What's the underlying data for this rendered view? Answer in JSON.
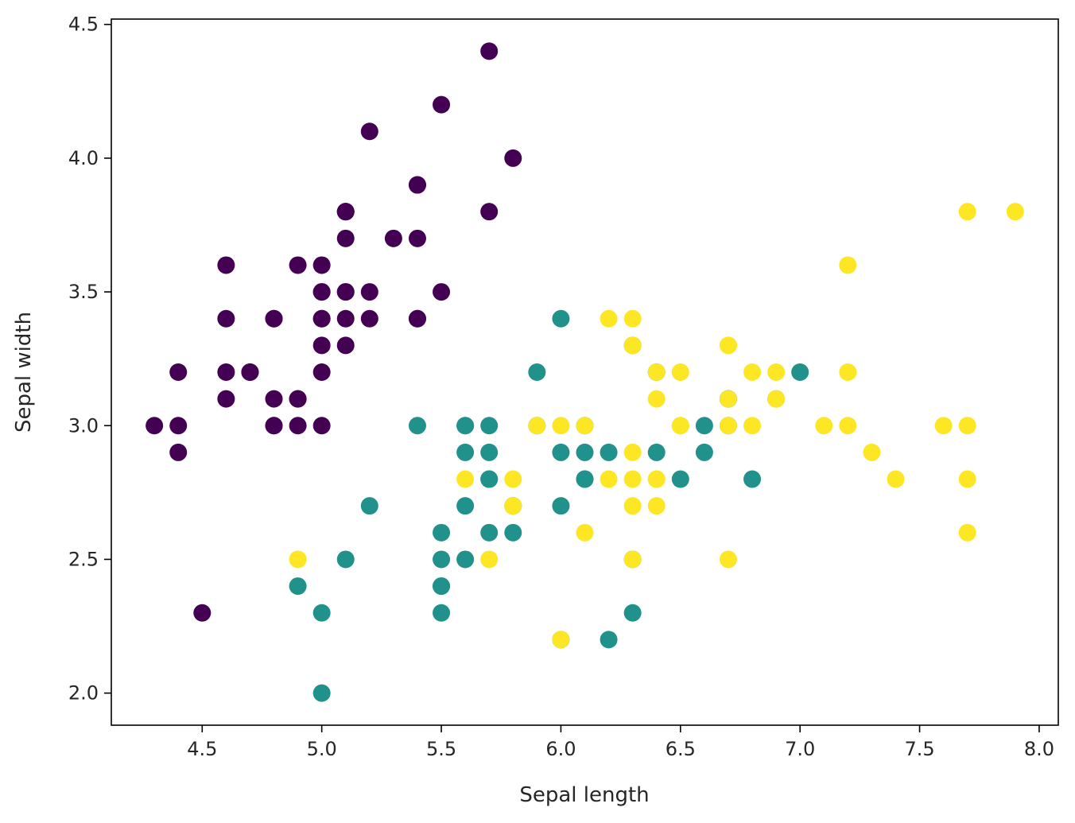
{
  "chart_data": {
    "type": "scatter",
    "xlabel": "Sepal length",
    "ylabel": "Sepal width",
    "xlim": [
      4.12,
      8.08
    ],
    "ylim": [
      1.88,
      4.52
    ],
    "xticks": [
      "4.5",
      "5.0",
      "5.5",
      "6.0",
      "6.5",
      "7.0",
      "7.5",
      "8.0"
    ],
    "yticks": [
      "2.0",
      "2.5",
      "3.0",
      "3.5",
      "4.0",
      "4.5"
    ],
    "grid": false,
    "legend": "none",
    "series": [
      {
        "color": "#440154",
        "points": [
          [
            5.1,
            3.5
          ],
          [
            4.9,
            3.0
          ],
          [
            4.7,
            3.2
          ],
          [
            4.6,
            3.1
          ],
          [
            5.0,
            3.6
          ],
          [
            5.4,
            3.9
          ],
          [
            4.6,
            3.4
          ],
          [
            5.0,
            3.4
          ],
          [
            4.4,
            2.9
          ],
          [
            4.9,
            3.1
          ],
          [
            5.4,
            3.7
          ],
          [
            4.8,
            3.4
          ],
          [
            4.8,
            3.0
          ],
          [
            4.3,
            3.0
          ],
          [
            5.8,
            4.0
          ],
          [
            5.7,
            4.4
          ],
          [
            5.4,
            3.9
          ],
          [
            5.1,
            3.5
          ],
          [
            5.7,
            3.8
          ],
          [
            5.1,
            3.8
          ],
          [
            5.4,
            3.4
          ],
          [
            5.1,
            3.7
          ],
          [
            4.6,
            3.6
          ],
          [
            5.1,
            3.3
          ],
          [
            4.8,
            3.4
          ],
          [
            5.0,
            3.0
          ],
          [
            5.0,
            3.4
          ],
          [
            5.2,
            3.5
          ],
          [
            5.2,
            3.4
          ],
          [
            4.7,
            3.2
          ],
          [
            4.8,
            3.1
          ],
          [
            5.4,
            3.4
          ],
          [
            5.2,
            4.1
          ],
          [
            5.5,
            4.2
          ],
          [
            4.9,
            3.1
          ],
          [
            5.0,
            3.2
          ],
          [
            5.5,
            3.5
          ],
          [
            4.9,
            3.6
          ],
          [
            4.4,
            3.0
          ],
          [
            5.1,
            3.4
          ],
          [
            5.0,
            3.5
          ],
          [
            4.5,
            2.3
          ],
          [
            4.4,
            3.2
          ],
          [
            5.0,
            3.5
          ],
          [
            5.1,
            3.8
          ],
          [
            4.8,
            3.0
          ],
          [
            5.1,
            3.8
          ],
          [
            4.6,
            3.2
          ],
          [
            5.3,
            3.7
          ],
          [
            5.0,
            3.3
          ]
        ]
      },
      {
        "color": "#21918c",
        "points": [
          [
            7.0,
            3.2
          ],
          [
            6.4,
            3.2
          ],
          [
            6.9,
            3.1
          ],
          [
            5.5,
            2.3
          ],
          [
            6.5,
            2.8
          ],
          [
            5.7,
            2.8
          ],
          [
            6.3,
            3.3
          ],
          [
            4.9,
            2.4
          ],
          [
            6.6,
            2.9
          ],
          [
            5.2,
            2.7
          ],
          [
            5.0,
            2.0
          ],
          [
            5.9,
            3.0
          ],
          [
            6.0,
            2.2
          ],
          [
            6.1,
            2.9
          ],
          [
            5.6,
            2.9
          ],
          [
            6.7,
            3.1
          ],
          [
            5.6,
            3.0
          ],
          [
            5.8,
            2.7
          ],
          [
            6.2,
            2.2
          ],
          [
            5.6,
            2.5
          ],
          [
            5.9,
            3.2
          ],
          [
            6.1,
            2.8
          ],
          [
            6.3,
            2.5
          ],
          [
            6.1,
            2.8
          ],
          [
            6.4,
            2.9
          ],
          [
            6.6,
            3.0
          ],
          [
            6.8,
            2.8
          ],
          [
            6.7,
            3.0
          ],
          [
            6.0,
            2.9
          ],
          [
            5.7,
            2.6
          ],
          [
            5.5,
            2.4
          ],
          [
            5.5,
            2.4
          ],
          [
            5.8,
            2.7
          ],
          [
            6.0,
            2.7
          ],
          [
            5.4,
            3.0
          ],
          [
            6.0,
            3.4
          ],
          [
            6.7,
            3.1
          ],
          [
            6.3,
            2.3
          ],
          [
            5.6,
            3.0
          ],
          [
            5.5,
            2.5
          ],
          [
            5.5,
            2.6
          ],
          [
            6.1,
            3.0
          ],
          [
            5.8,
            2.6
          ],
          [
            5.0,
            2.3
          ],
          [
            5.6,
            2.7
          ],
          [
            5.7,
            3.0
          ],
          [
            5.7,
            2.9
          ],
          [
            6.2,
            2.9
          ],
          [
            5.1,
            2.5
          ],
          [
            5.7,
            2.8
          ]
        ]
      },
      {
        "color": "#fde725",
        "points": [
          [
            6.3,
            3.3
          ],
          [
            5.8,
            2.7
          ],
          [
            7.1,
            3.0
          ],
          [
            6.3,
            2.9
          ],
          [
            6.5,
            3.0
          ],
          [
            7.6,
            3.0
          ],
          [
            4.9,
            2.5
          ],
          [
            7.3,
            2.9
          ],
          [
            6.7,
            2.5
          ],
          [
            7.2,
            3.6
          ],
          [
            6.5,
            3.2
          ],
          [
            6.4,
            2.7
          ],
          [
            6.8,
            3.0
          ],
          [
            5.7,
            2.5
          ],
          [
            5.8,
            2.8
          ],
          [
            6.4,
            3.2
          ],
          [
            6.5,
            3.0
          ],
          [
            7.7,
            3.8
          ],
          [
            7.7,
            2.6
          ],
          [
            6.0,
            2.2
          ],
          [
            6.9,
            3.2
          ],
          [
            5.6,
            2.8
          ],
          [
            7.7,
            2.8
          ],
          [
            6.3,
            2.7
          ],
          [
            6.7,
            3.3
          ],
          [
            7.2,
            3.2
          ],
          [
            6.2,
            2.8
          ],
          [
            6.1,
            3.0
          ],
          [
            6.4,
            2.8
          ],
          [
            7.2,
            3.0
          ],
          [
            7.4,
            2.8
          ],
          [
            7.9,
            3.8
          ],
          [
            6.4,
            2.8
          ],
          [
            6.3,
            2.8
          ],
          [
            6.1,
            2.6
          ],
          [
            7.7,
            3.0
          ],
          [
            6.3,
            3.4
          ],
          [
            6.4,
            3.1
          ],
          [
            6.0,
            3.0
          ],
          [
            6.9,
            3.1
          ],
          [
            6.7,
            3.1
          ],
          [
            6.9,
            3.1
          ],
          [
            5.8,
            2.7
          ],
          [
            6.8,
            3.2
          ],
          [
            6.7,
            3.3
          ],
          [
            6.7,
            3.0
          ],
          [
            6.3,
            2.5
          ],
          [
            6.5,
            3.0
          ],
          [
            6.2,
            3.4
          ],
          [
            5.9,
            3.0
          ]
        ]
      }
    ]
  }
}
